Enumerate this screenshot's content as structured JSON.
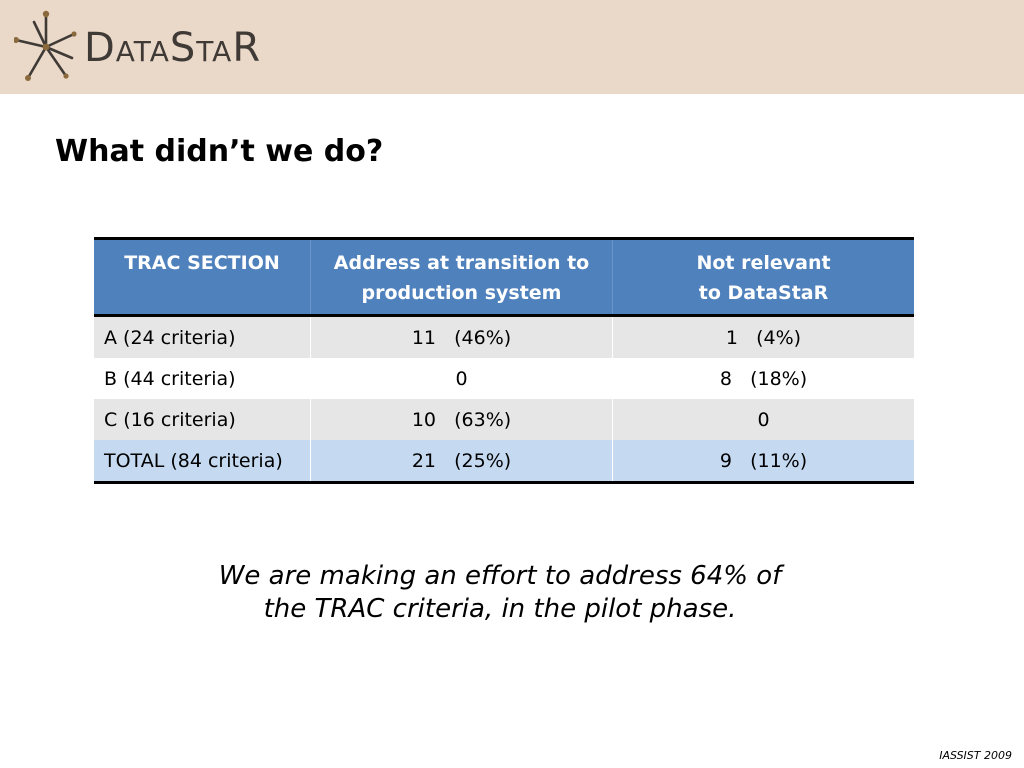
{
  "header": {
    "logo_text": "DataStaR",
    "logo_icon": "star-burst-icon",
    "colors": {
      "band": "#ead9c9",
      "logo_mark": "#3f3a36",
      "logo_dots": "#8a6a3c"
    }
  },
  "slide": {
    "title": "What didn’t we do?"
  },
  "table": {
    "headers": {
      "section": "TRAC SECTION",
      "transition": [
        "Address at transition to",
        "production system"
      ],
      "not_relevant": [
        "Not relevant",
        "to DataStaR"
      ]
    },
    "rows": [
      {
        "section": "A (24 criteria)",
        "transition": "11   (46%)",
        "not_relevant": "1   (4%)"
      },
      {
        "section": "B (44 criteria)",
        "transition": "0",
        "not_relevant": "8   (18%)"
      },
      {
        "section": "C (16 criteria)",
        "transition": "10   (63%)",
        "not_relevant": "0"
      },
      {
        "section": "TOTAL (84 criteria)",
        "transition": "21   (25%)",
        "not_relevant": "9   (11%)"
      }
    ],
    "colors": {
      "header": "#4f81bd",
      "row_shaded": "#e6e6e6",
      "row_total": "#c5d9f1"
    }
  },
  "summary": {
    "lines": [
      "We are making an effort to address 64% of",
      "the TRAC criteria, in the pilot phase."
    ]
  },
  "footer": {
    "note": "IASSIST 2009"
  }
}
